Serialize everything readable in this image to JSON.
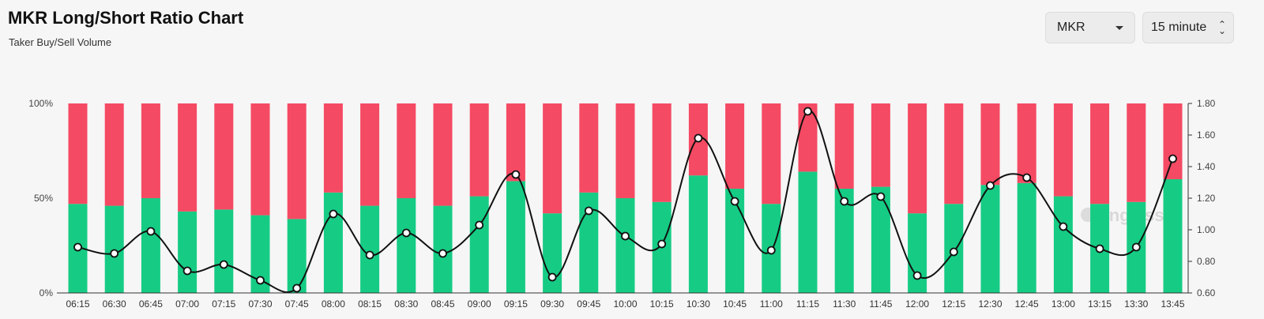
{
  "header": {
    "title": "MKR Long/Short Ratio Chart",
    "subtitle": "Taker Buy/Sell Volume"
  },
  "controls": {
    "symbol_select": {
      "value": "MKR",
      "icon": "caret-down-icon"
    },
    "interval_select": {
      "value": "15 minute",
      "icon": "up-down-chevron-icon"
    }
  },
  "watermark": "coinglass",
  "chart_data": {
    "type": "bar",
    "categories": [
      "06:15",
      "06:30",
      "06:45",
      "07:00",
      "07:15",
      "07:30",
      "07:45",
      "08:00",
      "08:15",
      "08:30",
      "08:45",
      "09:00",
      "09:15",
      "09:30",
      "09:45",
      "10:00",
      "10:15",
      "10:30",
      "10:45",
      "11:00",
      "11:15",
      "11:30",
      "11:45",
      "12:00",
      "12:15",
      "12:30",
      "12:45",
      "13:00",
      "13:15",
      "13:30",
      "13:45"
    ],
    "series": [
      {
        "type": "stacked-bar",
        "color": "#16cc84",
        "values": [
          47,
          46,
          50,
          43,
          44,
          41,
          39,
          53,
          46,
          50,
          46,
          51,
          59,
          42,
          53,
          50,
          48,
          62,
          55,
          47,
          64,
          55,
          56,
          42,
          47,
          57,
          58,
          51,
          47,
          48,
          60
        ]
      },
      {
        "type": "stacked-bar",
        "color": "#f54a63",
        "values": [
          53,
          54,
          50,
          57,
          56,
          59,
          61,
          47,
          54,
          50,
          54,
          49,
          41,
          58,
          47,
          50,
          52,
          38,
          45,
          53,
          36,
          45,
          44,
          58,
          53,
          43,
          42,
          49,
          53,
          52,
          40
        ]
      },
      {
        "type": "line",
        "axis": "right",
        "color": "#111111",
        "values": [
          0.89,
          0.85,
          0.99,
          0.74,
          0.78,
          0.68,
          0.63,
          1.1,
          0.84,
          0.98,
          0.85,
          1.03,
          1.35,
          0.7,
          1.12,
          0.96,
          0.91,
          1.58,
          1.18,
          0.87,
          1.75,
          1.18,
          1.21,
          0.71,
          0.86,
          1.28,
          1.33,
          1.02,
          0.88,
          0.89,
          1.45
        ]
      }
    ],
    "y_left": {
      "ticks": [
        "0%",
        "50%",
        "100%"
      ],
      "range": [
        0,
        100
      ]
    },
    "y_right": {
      "ticks": [
        "0.60",
        "0.80",
        "1.00",
        "1.20",
        "1.40",
        "1.60",
        "1.80"
      ],
      "range": [
        0.6,
        1.8
      ]
    },
    "grid": false,
    "legend": "none"
  }
}
